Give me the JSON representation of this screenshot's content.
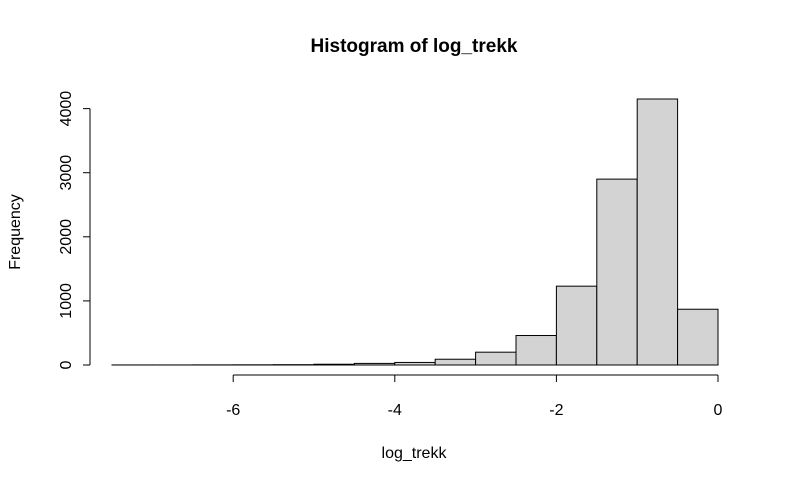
{
  "chart_data": {
    "type": "bar",
    "title": "Histogram of log_trekk",
    "xlabel": "log_trekk",
    "ylabel": "Frequency",
    "bin_edges": [
      -7.5,
      -7.0,
      -6.5,
      -6.0,
      -5.5,
      -5.0,
      -4.5,
      -4.0,
      -3.5,
      -3.0,
      -2.5,
      -2.0,
      -1.5,
      -1.0,
      -0.5,
      0.0
    ],
    "values": [
      1,
      1,
      2,
      3,
      5,
      12,
      25,
      40,
      90,
      200,
      460,
      1230,
      2900,
      4150,
      870
    ],
    "x_ticks": [
      -6,
      -4,
      -2,
      0
    ],
    "x_tick_labels": [
      "-6",
      "-4",
      "-2",
      "0"
    ],
    "y_ticks": [
      0,
      1000,
      2000,
      3000,
      4000
    ],
    "y_tick_labels": [
      "0",
      "1000",
      "2000",
      "3000",
      "4000"
    ],
    "xlim": [
      -7.5,
      0
    ],
    "ylim": [
      0,
      4150
    ],
    "bar_fill": "#d3d3d3",
    "bar_stroke": "#000000",
    "grid": false,
    "legend": "none"
  }
}
